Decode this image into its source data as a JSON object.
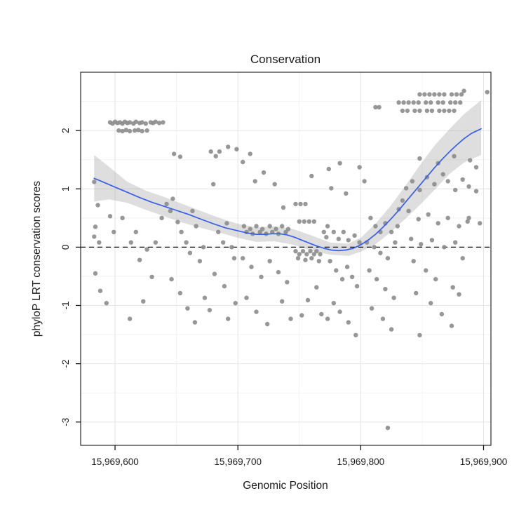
{
  "page": {
    "background": "#ffffff"
  },
  "chart_data": {
    "type": "scatter",
    "title": "Conservation",
    "xlabel": "Genomic Position",
    "ylabel": "phyloP LRT conservation scores",
    "xlim": [
      15969572,
      15969906
    ],
    "ylim": [
      -3.4,
      3.0
    ],
    "x_base": 15969000,
    "grid": true,
    "legend": "none",
    "x_ticks": [
      {
        "value": 15969600,
        "label": "15,969,600"
      },
      {
        "value": 15969700,
        "label": "15,969,700"
      },
      {
        "value": 15969800,
        "label": "15,969,800"
      },
      {
        "value": 15969900,
        "label": "15,969,900"
      }
    ],
    "y_ticks": [
      {
        "value": 2,
        "label": "2"
      },
      {
        "value": 1,
        "label": "1"
      },
      {
        "value": 0,
        "label": "0"
      },
      {
        "value": -1,
        "label": "-1"
      },
      {
        "value": -2,
        "label": "-2"
      },
      {
        "value": -3,
        "label": "-3"
      }
    ],
    "x_minor_ticks": [
      15969650,
      15969750,
      15969850
    ],
    "y_minor_ticks": [
      -2.5,
      -1.5,
      -0.5,
      0.5,
      1.5,
      2.5
    ],
    "reference_line": {
      "y": 0,
      "style": "dashed",
      "color": "#000000"
    },
    "colors": {
      "point": "#8c8c8c",
      "smooth_line": "#3a5fe5",
      "ribbon": "#999999",
      "grid_major": "#e4e4e4",
      "grid_minor": "#f2f2f2",
      "panel_border": "#2b2b2b",
      "text": "#1a1a1a"
    },
    "points_dx_y": [
      [
        596,
        2.14
      ],
      [
        598,
        2.12
      ],
      [
        600,
        2.15
      ],
      [
        602,
        2.13
      ],
      [
        604,
        2.14
      ],
      [
        606,
        2.12
      ],
      [
        608,
        2.15
      ],
      [
        610,
        2.13
      ],
      [
        612,
        2.14
      ],
      [
        615,
        2.12
      ],
      [
        617,
        2.15
      ],
      [
        620,
        2.13
      ],
      [
        622,
        2.14
      ],
      [
        625,
        2.12
      ],
      [
        629,
        2.14
      ],
      [
        631,
        2.13
      ],
      [
        633,
        2.15
      ],
      [
        636,
        2.13
      ],
      [
        639,
        2.14
      ],
      [
        603,
        2.0
      ],
      [
        606,
        1.99
      ],
      [
        609,
        2.01
      ],
      [
        612,
        1.99
      ],
      [
        616,
        2.0
      ],
      [
        619,
        2.01
      ],
      [
        622,
        1.99
      ],
      [
        626,
        2.0
      ],
      [
        583,
        1.12
      ],
      [
        586,
        0.72
      ],
      [
        584,
        0.35
      ],
      [
        583,
        0.18
      ],
      [
        587,
        0.08
      ],
      [
        584,
        -0.45
      ],
      [
        588,
        -0.75
      ],
      [
        593,
        -0.96
      ],
      [
        596,
        0.53
      ],
      [
        599,
        0.26
      ],
      [
        606,
        0.5
      ],
      [
        613,
        0.08
      ],
      [
        617,
        0.26
      ],
      [
        620,
        -0.22
      ],
      [
        626,
        -0.04
      ],
      [
        630,
        -0.51
      ],
      [
        633,
        0.08
      ],
      [
        638,
        0.5
      ],
      [
        623,
        -0.93
      ],
      [
        612,
        -1.23
      ],
      [
        642,
        0.74
      ],
      [
        645,
        0.62
      ],
      [
        647,
        0.83
      ],
      [
        651,
        0.43
      ],
      [
        654,
        0.26
      ],
      [
        658,
        0.08
      ],
      [
        661,
        -0.1
      ],
      [
        663,
        0.62
      ],
      [
        666,
        0.36
      ],
      [
        669,
        -0.24
      ],
      [
        672,
        0.0
      ],
      [
        646,
        -0.55
      ],
      [
        653,
        -0.79
      ],
      [
        659,
        -1.05
      ],
      [
        665,
        -1.29
      ],
      [
        673,
        -0.87
      ],
      [
        648,
        1.6
      ],
      [
        653,
        1.55
      ],
      [
        678,
        1.64
      ],
      [
        682,
        1.56
      ],
      [
        685,
        1.64
      ],
      [
        692,
        1.72
      ],
      [
        699,
        1.68
      ],
      [
        680,
        1.08
      ],
      [
        684,
        0.26
      ],
      [
        688,
        0.08
      ],
      [
        691,
        0.41
      ],
      [
        695,
        0.0
      ],
      [
        681,
        -0.46
      ],
      [
        689,
        -0.67
      ],
      [
        697,
        -0.19
      ],
      [
        677,
        -1.08
      ],
      [
        692,
        -1.23
      ],
      [
        698,
        -0.96
      ],
      [
        704,
        1.46
      ],
      [
        710,
        1.6
      ],
      [
        714,
        1.13
      ],
      [
        721,
        1.28
      ],
      [
        730,
        1.08
      ],
      [
        737,
        0.68
      ],
      [
        705,
        0.36
      ],
      [
        707,
        0.26
      ],
      [
        710,
        0.31
      ],
      [
        712,
        0.23
      ],
      [
        715,
        0.36
      ],
      [
        718,
        0.26
      ],
      [
        720,
        0.31
      ],
      [
        723,
        0.23
      ],
      [
        726,
        0.36
      ],
      [
        728,
        0.26
      ],
      [
        731,
        0.31
      ],
      [
        733,
        0.23
      ],
      [
        736,
        0.36
      ],
      [
        739,
        0.26
      ],
      [
        741,
        0.31
      ],
      [
        704,
        -0.19
      ],
      [
        711,
        -0.34
      ],
      [
        719,
        -0.51
      ],
      [
        726,
        -0.24
      ],
      [
        733,
        -0.43
      ],
      [
        740,
        -0.6
      ],
      [
        707,
        -0.87
      ],
      [
        715,
        -1.11
      ],
      [
        724,
        -1.32
      ],
      [
        736,
        -0.93
      ],
      [
        743,
        -1.23
      ],
      [
        747,
        0.74
      ],
      [
        751,
        0.74
      ],
      [
        755,
        0.74
      ],
      [
        750,
        0.44
      ],
      [
        754,
        0.44
      ],
      [
        758,
        0.44
      ],
      [
        762,
        0.44
      ],
      [
        747,
        -0.07
      ],
      [
        750,
        -0.12
      ],
      [
        753,
        -0.07
      ],
      [
        756,
        -0.12
      ],
      [
        759,
        -0.07
      ],
      [
        762,
        -0.12
      ],
      [
        764,
        -0.07
      ],
      [
        767,
        -0.12
      ],
      [
        749,
        -0.19
      ],
      [
        755,
        -0.22
      ],
      [
        760,
        -0.19
      ],
      [
        766,
        -0.24
      ],
      [
        770,
        0.26
      ],
      [
        772,
        0.17
      ],
      [
        760,
        1.22
      ],
      [
        764,
        -0.69
      ],
      [
        757,
        -0.91
      ],
      [
        752,
        -1.17
      ],
      [
        768,
        -1.15
      ],
      [
        774,
        1.34
      ],
      [
        783,
        1.44
      ],
      [
        799,
        1.37
      ],
      [
        776,
        1.01
      ],
      [
        788,
        0.92
      ],
      [
        773,
        0.36
      ],
      [
        778,
        0.26
      ],
      [
        782,
        0.14
      ],
      [
        786,
        0.26
      ],
      [
        790,
        0.12
      ],
      [
        795,
        0.2
      ],
      [
        799,
        0.08
      ],
      [
        775,
        -0.24
      ],
      [
        780,
        -0.4
      ],
      [
        785,
        -0.55
      ],
      [
        789,
        -0.34
      ],
      [
        793,
        -0.51
      ],
      [
        797,
        -0.67
      ],
      [
        778,
        -0.96
      ],
      [
        783,
        -1.11
      ],
      [
        790,
        -1.29
      ],
      [
        796,
        -1.51
      ],
      [
        773,
        -1.23
      ],
      [
        803,
        1.13
      ],
      [
        808,
        0.5
      ],
      [
        812,
        0.36
      ],
      [
        816,
        0.26
      ],
      [
        820,
        0.41
      ],
      [
        825,
        0.26
      ],
      [
        830,
        0.36
      ],
      [
        805,
        0.08
      ],
      [
        811,
        0.0
      ],
      [
        816,
        -0.1
      ],
      [
        822,
        -0.19
      ],
      [
        828,
        0.08
      ],
      [
        807,
        -0.4
      ],
      [
        813,
        -0.55
      ],
      [
        820,
        -0.72
      ],
      [
        827,
        -0.87
      ],
      [
        809,
        -1.05
      ],
      [
        818,
        -1.23
      ],
      [
        825,
        -1.41
      ],
      [
        822,
        -3.1
      ],
      [
        831,
        0.65
      ],
      [
        834,
        0.8
      ],
      [
        837,
        1.01
      ],
      [
        842,
        1.13
      ],
      [
        848,
        0.98
      ],
      [
        854,
        1.2
      ],
      [
        860,
        1.08
      ],
      [
        867,
        1.25
      ],
      [
        871,
        1.13
      ],
      [
        877,
        0.98
      ],
      [
        883,
        1.16
      ],
      [
        888,
        1.04
      ],
      [
        894,
        0.96
      ],
      [
        839,
        0.62
      ],
      [
        847,
        0.48
      ],
      [
        855,
        0.56
      ],
      [
        863,
        0.41
      ],
      [
        871,
        0.5
      ],
      [
        880,
        0.36
      ],
      [
        887,
        0.44
      ],
      [
        841,
        0.14
      ],
      [
        849,
        0.05
      ],
      [
        858,
        0.12
      ],
      [
        868,
        0.0
      ],
      [
        877,
        0.08
      ],
      [
        843,
        -0.24
      ],
      [
        853,
        -0.4
      ],
      [
        861,
        -0.55
      ],
      [
        845,
        -0.79
      ],
      [
        857,
        -0.96
      ],
      [
        866,
        -1.15
      ],
      [
        874,
        -1.35
      ],
      [
        848,
        -1.51
      ],
      [
        883,
        -0.19
      ],
      [
        880,
        -0.81
      ],
      [
        875,
        -0.69
      ],
      [
        848,
        1.52
      ],
      [
        863,
        1.44
      ],
      [
        876,
        1.56
      ],
      [
        889,
        1.49
      ],
      [
        894,
        1.37
      ],
      [
        888,
        0.5
      ],
      [
        897,
        0.41
      ],
      [
        848,
        2.62
      ],
      [
        852,
        2.62
      ],
      [
        856,
        2.62
      ],
      [
        860,
        2.62
      ],
      [
        864,
        2.62
      ],
      [
        868,
        2.62
      ],
      [
        874,
        2.62
      ],
      [
        878,
        2.62
      ],
      [
        882,
        2.62
      ],
      [
        831,
        2.48
      ],
      [
        835,
        2.48
      ],
      [
        839,
        2.48
      ],
      [
        843,
        2.48
      ],
      [
        847,
        2.48
      ],
      [
        853,
        2.48
      ],
      [
        857,
        2.48
      ],
      [
        863,
        2.48
      ],
      [
        867,
        2.48
      ],
      [
        873,
        2.48
      ],
      [
        877,
        2.48
      ],
      [
        881,
        2.48
      ],
      [
        834,
        2.34
      ],
      [
        838,
        2.34
      ],
      [
        844,
        2.34
      ],
      [
        848,
        2.34
      ],
      [
        854,
        2.34
      ],
      [
        858,
        2.34
      ],
      [
        864,
        2.34
      ],
      [
        868,
        2.34
      ],
      [
        872,
        2.34
      ],
      [
        876,
        2.34
      ],
      [
        812,
        2.4
      ],
      [
        815,
        2.4
      ],
      [
        884,
        2.68
      ],
      [
        903,
        2.66
      ]
    ],
    "smooth_line_dx_y": [
      [
        583,
        1.18
      ],
      [
        590,
        1.12
      ],
      [
        600,
        1.03
      ],
      [
        610,
        0.94
      ],
      [
        620,
        0.85
      ],
      [
        630,
        0.77
      ],
      [
        640,
        0.7
      ],
      [
        650,
        0.63
      ],
      [
        660,
        0.56
      ],
      [
        670,
        0.48
      ],
      [
        680,
        0.4
      ],
      [
        690,
        0.33
      ],
      [
        700,
        0.28
      ],
      [
        708,
        0.24
      ],
      [
        715,
        0.22
      ],
      [
        722,
        0.22
      ],
      [
        728,
        0.23
      ],
      [
        734,
        0.23
      ],
      [
        740,
        0.21
      ],
      [
        746,
        0.17
      ],
      [
        752,
        0.12
      ],
      [
        758,
        0.07
      ],
      [
        764,
        0.02
      ],
      [
        770,
        -0.02
      ],
      [
        776,
        -0.05
      ],
      [
        782,
        -0.06
      ],
      [
        788,
        -0.05
      ],
      [
        794,
        -0.02
      ],
      [
        800,
        0.04
      ],
      [
        806,
        0.12
      ],
      [
        812,
        0.22
      ],
      [
        818,
        0.34
      ],
      [
        824,
        0.47
      ],
      [
        830,
        0.61
      ],
      [
        836,
        0.76
      ],
      [
        842,
        0.91
      ],
      [
        848,
        1.06
      ],
      [
        854,
        1.21
      ],
      [
        860,
        1.36
      ],
      [
        866,
        1.5
      ],
      [
        872,
        1.63
      ],
      [
        878,
        1.75
      ],
      [
        884,
        1.86
      ],
      [
        890,
        1.95
      ],
      [
        898,
        2.03
      ]
    ],
    "ribbon_dx_lo_hi": [
      [
        583,
        0.78,
        1.58
      ],
      [
        595,
        0.82,
        1.38
      ],
      [
        610,
        0.76,
        1.12
      ],
      [
        625,
        0.64,
        0.97
      ],
      [
        640,
        0.53,
        0.86
      ],
      [
        655,
        0.42,
        0.74
      ],
      [
        670,
        0.33,
        0.62
      ],
      [
        685,
        0.25,
        0.5
      ],
      [
        700,
        0.16,
        0.4
      ],
      [
        715,
        0.09,
        0.34
      ],
      [
        730,
        0.1,
        0.36
      ],
      [
        745,
        0.04,
        0.31
      ],
      [
        760,
        -0.06,
        0.2
      ],
      [
        775,
        -0.13,
        0.08
      ],
      [
        790,
        -0.15,
        0.06
      ],
      [
        800,
        -0.08,
        0.16
      ],
      [
        812,
        0.05,
        0.4
      ],
      [
        824,
        0.25,
        0.7
      ],
      [
        836,
        0.48,
        1.04
      ],
      [
        848,
        0.72,
        1.4
      ],
      [
        860,
        0.98,
        1.74
      ],
      [
        872,
        1.25,
        2.02
      ],
      [
        884,
        1.45,
        2.28
      ],
      [
        898,
        1.58,
        2.52
      ]
    ]
  }
}
